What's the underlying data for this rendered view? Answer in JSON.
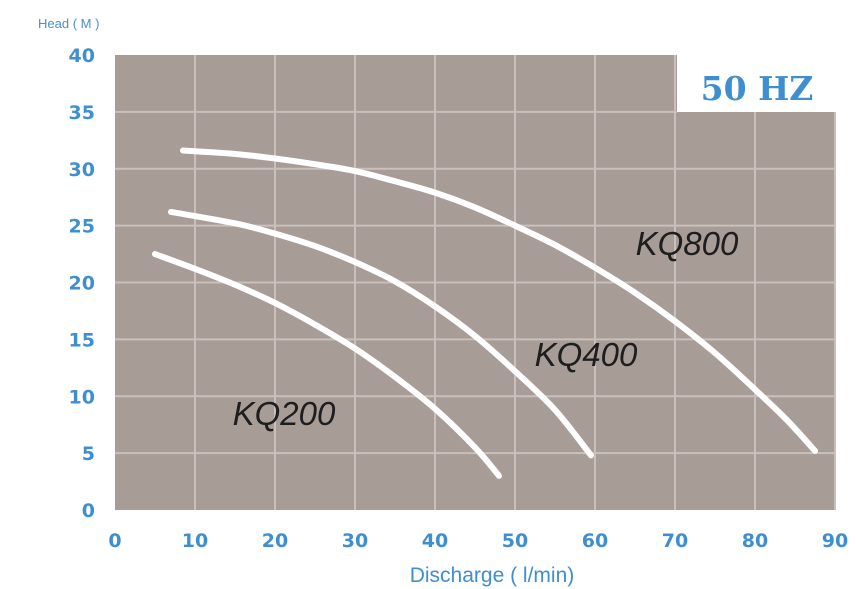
{
  "chart_data": {
    "type": "line",
    "ylabel": "Head ( M )",
    "xlabel": "Discharge ( l/min)",
    "frequency_badge": "50 HZ",
    "xlim": [
      0,
      90
    ],
    "ylim": [
      0,
      40
    ],
    "x_ticks": [
      0,
      10,
      20,
      30,
      40,
      50,
      60,
      70,
      80,
      90
    ],
    "y_ticks": [
      0,
      5,
      10,
      15,
      20,
      25,
      30,
      35,
      40
    ],
    "grid": true,
    "background_color": "#a89c96",
    "curve_color": "#ffffff",
    "accent_color": "#3f8fd0",
    "series": [
      {
        "name": "KQ200",
        "x": [
          5,
          10,
          15,
          20,
          25,
          30,
          35,
          40,
          45,
          48
        ],
        "y": [
          22.5,
          21.2,
          19.8,
          18.2,
          16.3,
          14.2,
          11.7,
          8.9,
          5.5,
          3.0
        ]
      },
      {
        "name": "KQ400",
        "x": [
          7,
          15,
          20,
          25,
          30,
          35,
          40,
          45,
          50,
          55,
          59.5
        ],
        "y": [
          26.2,
          25.2,
          24.3,
          23.2,
          21.8,
          20.1,
          17.9,
          15.3,
          12.2,
          8.8,
          4.8
        ]
      },
      {
        "name": "KQ800",
        "x": [
          8.5,
          15,
          20,
          25,
          30,
          35,
          40,
          45,
          50,
          55,
          60,
          65,
          70,
          75,
          80,
          84,
          87.5
        ],
        "y": [
          31.6,
          31.3,
          30.9,
          30.4,
          29.8,
          28.9,
          27.9,
          26.6,
          25.0,
          23.3,
          21.3,
          19.1,
          16.6,
          13.8,
          10.6,
          7.9,
          5.2
        ]
      }
    ]
  }
}
